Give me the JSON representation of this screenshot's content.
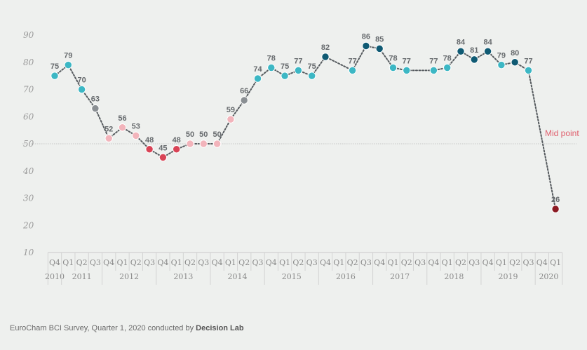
{
  "chart_data": {
    "type": "line",
    "title": "",
    "xlabel": "",
    "ylabel": "",
    "ylim": [
      10,
      90
    ],
    "yticks": [
      "10",
      "20",
      "30",
      "40",
      "50",
      "60",
      "70",
      "80",
      "90"
    ],
    "grid": false,
    "quarters": [
      "Q4",
      "Q1",
      "Q2",
      "Q3",
      "Q4",
      "Q1",
      "Q2",
      "Q3",
      "Q4",
      "Q1",
      "Q2",
      "Q3",
      "Q4",
      "Q1",
      "Q2",
      "Q3",
      "Q4",
      "Q1",
      "Q2",
      "Q3",
      "Q4",
      "Q1",
      "Q2",
      "Q3",
      "Q4",
      "Q1",
      "Q2",
      "Q3",
      "Q4",
      "Q1",
      "Q2",
      "Q3",
      "Q4",
      "Q1",
      "Q2",
      "Q3",
      "Q4",
      "Q1"
    ],
    "years": [
      {
        "label": "2010",
        "start": 0,
        "end": 0
      },
      {
        "label": "2011",
        "start": 1,
        "end": 3
      },
      {
        "label": "2012",
        "start": 4,
        "end": 7
      },
      {
        "label": "2013",
        "start": 8,
        "end": 11
      },
      {
        "label": "2014",
        "start": 12,
        "end": 15
      },
      {
        "label": "2015",
        "start": 16,
        "end": 19
      },
      {
        "label": "2016",
        "start": 20,
        "end": 23
      },
      {
        "label": "2017",
        "start": 24,
        "end": 27
      },
      {
        "label": "2018",
        "start": 28,
        "end": 31
      },
      {
        "label": "2019",
        "start": 32,
        "end": 35
      },
      {
        "label": "2020",
        "start": 36,
        "end": 37
      }
    ],
    "series": [
      {
        "name": "BCI",
        "values": [
          75,
          79,
          70,
          63,
          52,
          56,
          53,
          48,
          45,
          48,
          50,
          50,
          50,
          59,
          66,
          74,
          78,
          75,
          77,
          75,
          82,
          null,
          77,
          86,
          85,
          78,
          77,
          null,
          77,
          78,
          84,
          81,
          84,
          79,
          80,
          77,
          null,
          26
        ],
        "labels": [
          "75",
          "79",
          "70",
          "63",
          "52",
          "56",
          "53",
          "48",
          "45",
          "48",
          "50",
          "50",
          "50",
          "59",
          "66",
          "74",
          "78",
          "75",
          "77",
          "75",
          "82",
          "",
          "77",
          "86",
          "85",
          "78",
          "77",
          "",
          "77",
          "78",
          "84",
          "81",
          "84",
          "79",
          "80",
          "77",
          "",
          "26"
        ],
        "colors": [
          "#3cb7c4",
          "#3cb7c4",
          "#3cb7c4",
          "#8a8f93",
          "#f2b4bb",
          "#f2b4bb",
          "#f2b4bb",
          "#d94456",
          "#d94456",
          "#d94456",
          "#f2b4bb",
          "#f2b4bb",
          "#f2b4bb",
          "#f2b4bb",
          "#8a8f93",
          "#3cb7c4",
          "#3cb7c4",
          "#3cb7c4",
          "#3cb7c4",
          "#3cb7c4",
          "#0f5a73",
          "",
          "#3cb7c4",
          "#0f5a73",
          "#0f5a73",
          "#3cb7c4",
          "#3cb7c4",
          "",
          "#3cb7c4",
          "#3cb7c4",
          "#0f5a73",
          "#0f5a73",
          "#0f5a73",
          "#3cb7c4",
          "#0f5a73",
          "#3cb7c4",
          "",
          "#8b1a22"
        ]
      }
    ],
    "reference_line": {
      "value": 50,
      "label": "Mid point",
      "color": "#e0606e"
    }
  },
  "footer": {
    "prefix": "EuroCham BCI Survey, Quarter 1, 2020 conducted by ",
    "emphasis": "Decision Lab"
  }
}
